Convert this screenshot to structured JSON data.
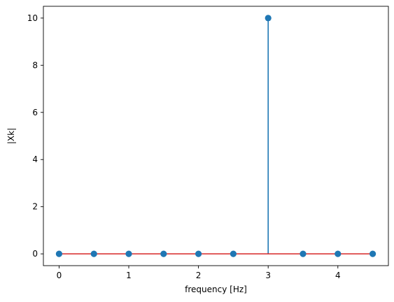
{
  "chart_data": {
    "type": "stem",
    "title": "",
    "xlabel": "frequency [Hz]",
    "ylabel": "|Xk|",
    "x": [
      0,
      0.5,
      1,
      1.5,
      2,
      2.5,
      3,
      3.5,
      4,
      4.5
    ],
    "y": [
      0,
      0,
      0,
      0,
      0,
      0,
      10,
      0,
      0,
      0
    ],
    "xlim": [
      -0.225,
      4.725
    ],
    "ylim": [
      -0.5,
      10.5
    ],
    "xticks": [
      0,
      1,
      2,
      3,
      4
    ],
    "yticks": [
      0,
      2,
      4,
      6,
      8,
      10
    ],
    "grid": false,
    "legend": "none",
    "colors": {
      "stem": "#1f77b4",
      "marker": "#1f77b4",
      "baseline": "#d62728",
      "axis": "#000000"
    }
  }
}
